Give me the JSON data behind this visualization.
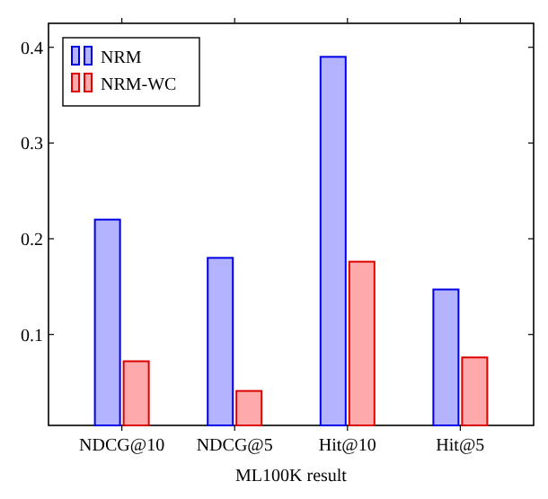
{
  "chart_data": {
    "type": "bar",
    "xlabel": "ML100K result",
    "categories": [
      "NDCG@10",
      "NDCG@5",
      "Hit@10",
      "Hit@5"
    ],
    "series": [
      {
        "name": "NRM",
        "color": "#b3b3ff",
        "values": [
          0.22,
          0.18,
          0.39,
          0.147
        ]
      },
      {
        "name": "NRM-WC",
        "color": "#ffaaaa",
        "values": [
          0.072,
          0.041,
          0.176,
          0.076
        ]
      }
    ],
    "ylim": [
      0.005,
      0.425
    ],
    "yticks": [
      0.1,
      0.2,
      0.3,
      0.4
    ],
    "legend": "top left",
    "grid": false
  }
}
